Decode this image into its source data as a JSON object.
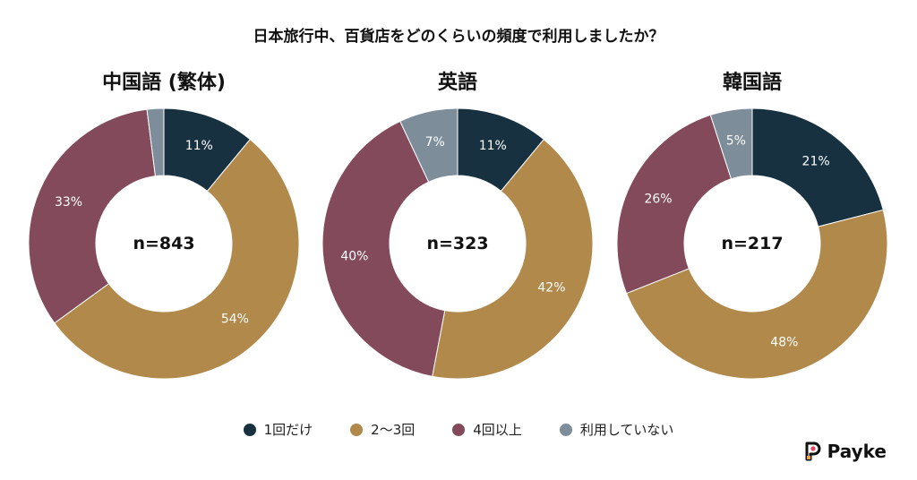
{
  "title": "日本旅行中、百貨店をどのくらいの頻度で利用しましたか？",
  "legend": [
    {
      "label": "1回だけ",
      "color": "#173140"
    },
    {
      "label": "2〜3回",
      "color": "#b0894b"
    },
    {
      "label": "4回以上",
      "color": "#824a5a"
    },
    {
      "label": "利用していない",
      "color": "#7d8d99"
    }
  ],
  "brand": {
    "name": "Payke"
  },
  "chart_data": [
    {
      "type": "pie",
      "title": "中国語 (繁体)",
      "center_label": "n=843",
      "categories": [
        "1回だけ",
        "2〜3回",
        "4回以上",
        "利用していない"
      ],
      "values": [
        11,
        54,
        33,
        2
      ],
      "labels": [
        "11%",
        "54%",
        "33%",
        ""
      ]
    },
    {
      "type": "pie",
      "title": "英語",
      "center_label": "n=323",
      "categories": [
        "1回だけ",
        "2〜3回",
        "4回以上",
        "利用していない"
      ],
      "values": [
        11,
        42,
        40,
        7
      ],
      "labels": [
        "11%",
        "42%",
        "40%",
        "7%"
      ]
    },
    {
      "type": "pie",
      "title": "韓国語",
      "center_label": "n=217",
      "categories": [
        "1回だけ",
        "2〜3回",
        "4回以上",
        "利用していない"
      ],
      "values": [
        21,
        48,
        26,
        5
      ],
      "labels": [
        "21%",
        "48%",
        "26%",
        "5%"
      ]
    }
  ]
}
